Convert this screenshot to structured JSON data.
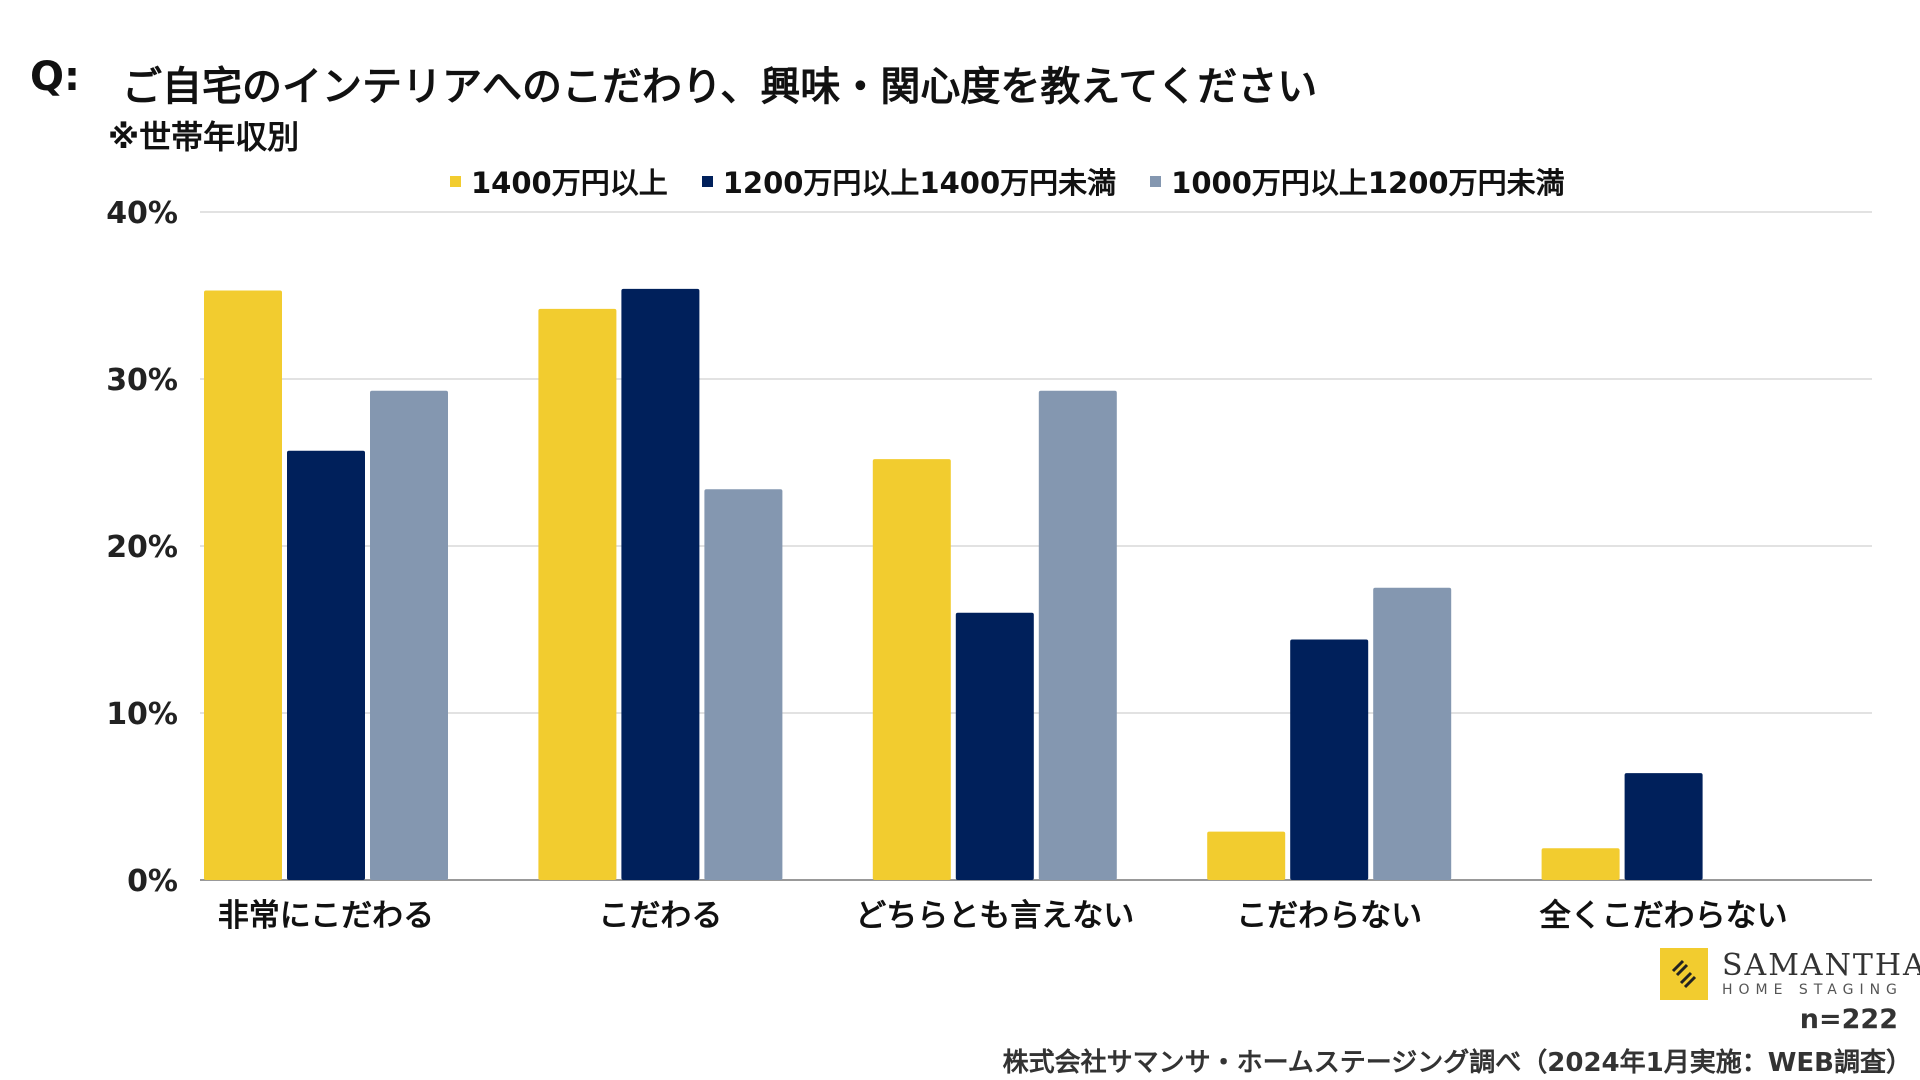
{
  "header": {
    "q_label": "Q:",
    "title": "ご自宅のインテリアへのこだわり、興味・関心度を教えてください",
    "subtitle": "※世帯年収別"
  },
  "legend": [
    {
      "label": "1400万円以上",
      "color": "#F2CC2F"
    },
    {
      "label": "1200万円以上1400万円未満",
      "color": "#00205B"
    },
    {
      "label": "1000万円以上1200万円未満",
      "color": "#8497B0"
    }
  ],
  "chart_data": {
    "type": "bar",
    "title": "ご自宅のインテリアへのこだわり、興味・関心度を教えてください",
    "subtitle": "※世帯年収別",
    "categories": [
      "非常にこだわる",
      "こだわる",
      "どちらとも言えない",
      "こだわらない",
      "全くこだわらない"
    ],
    "series": [
      {
        "name": "1400万円以上",
        "color": "#F2CC2F",
        "values": [
          35.3,
          34.2,
          25.2,
          2.9,
          1.9
        ]
      },
      {
        "name": "1200万円以上1400万円未満",
        "color": "#00205B",
        "values": [
          25.7,
          35.4,
          16.0,
          14.4,
          6.4
        ]
      },
      {
        "name": "1000万円以上1200万円未満",
        "color": "#8497B0",
        "values": [
          29.3,
          23.4,
          29.3,
          17.5,
          0
        ]
      }
    ],
    "y_ticks": [
      "0%",
      "10%",
      "20%",
      "30%",
      "40%"
    ],
    "ylim": [
      0,
      40
    ],
    "grid": true,
    "legend_position": "top"
  },
  "footer": {
    "logo_name": "SAMANTHA",
    "logo_sub": "HOME STAGING",
    "n_label": "n=222",
    "source": "株式会社サマンサ・ホームステージング調べ（2024年1月実施：WEB調査）"
  }
}
